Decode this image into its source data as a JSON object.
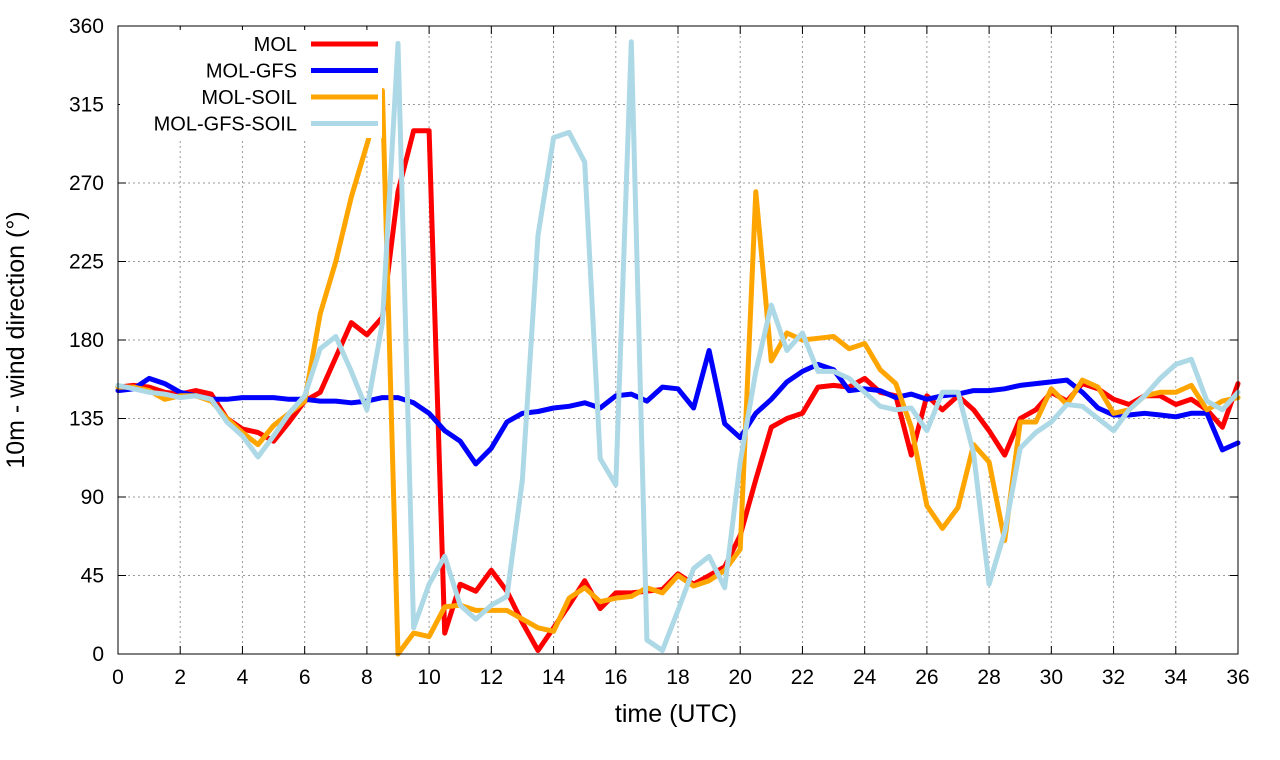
{
  "chart_data": {
    "type": "line",
    "title": "",
    "xlabel": "time (UTC)",
    "ylabel": "10m - wind direction (°)",
    "xlim": [
      0,
      36
    ],
    "ylim": [
      0,
      360
    ],
    "xticks": [
      0,
      2,
      4,
      6,
      8,
      10,
      12,
      14,
      16,
      18,
      20,
      22,
      24,
      26,
      28,
      30,
      32,
      34,
      36
    ],
    "yticks": [
      0,
      45,
      90,
      135,
      180,
      225,
      270,
      315,
      360
    ],
    "grid": true,
    "legend_position": "top-left",
    "series": [
      {
        "name": "MOL",
        "color": "#ff0000",
        "points": [
          [
            0,
            153
          ],
          [
            0.5,
            154
          ],
          [
            1,
            153
          ],
          [
            1.5,
            150
          ],
          [
            2,
            149
          ],
          [
            2.5,
            151
          ],
          [
            3,
            149
          ],
          [
            3.5,
            135
          ],
          [
            4,
            129
          ],
          [
            4.5,
            127
          ],
          [
            5,
            122
          ],
          [
            5.5,
            133
          ],
          [
            6,
            145
          ],
          [
            6.5,
            150
          ],
          [
            7,
            170
          ],
          [
            7.5,
            190
          ],
          [
            8,
            183
          ],
          [
            8.5,
            193
          ],
          [
            9,
            265
          ],
          [
            9.5,
            300
          ],
          [
            10,
            300
          ],
          [
            10.5,
            12
          ],
          [
            11,
            40
          ],
          [
            11.5,
            36
          ],
          [
            12,
            48
          ],
          [
            12.5,
            36
          ],
          [
            13,
            18
          ],
          [
            13.5,
            2
          ],
          [
            14,
            15
          ],
          [
            14.5,
            28
          ],
          [
            15,
            42
          ],
          [
            15.5,
            26
          ],
          [
            16,
            35
          ],
          [
            16.5,
            35
          ],
          [
            17,
            36
          ],
          [
            17.5,
            37
          ],
          [
            18,
            46
          ],
          [
            18.5,
            40
          ],
          [
            19,
            45
          ],
          [
            19.5,
            50
          ],
          [
            20,
            68
          ],
          [
            20.5,
            100
          ],
          [
            21,
            130
          ],
          [
            21.5,
            135
          ],
          [
            22,
            138
          ],
          [
            22.5,
            153
          ],
          [
            23,
            154
          ],
          [
            23.5,
            153
          ],
          [
            24,
            158
          ],
          [
            24.5,
            150
          ],
          [
            25,
            148
          ],
          [
            25.5,
            114
          ],
          [
            26,
            148
          ],
          [
            26.5,
            140
          ],
          [
            27,
            148
          ],
          [
            27.5,
            140
          ],
          [
            28,
            128
          ],
          [
            28.5,
            114
          ],
          [
            29,
            135
          ],
          [
            29.5,
            140
          ],
          [
            30,
            150
          ],
          [
            30.5,
            145
          ],
          [
            31,
            155
          ],
          [
            31.5,
            152
          ],
          [
            32,
            146
          ],
          [
            32.5,
            143
          ],
          [
            33,
            148
          ],
          [
            33.5,
            148
          ],
          [
            34,
            143
          ],
          [
            34.5,
            146
          ],
          [
            35,
            140
          ],
          [
            35.5,
            130
          ],
          [
            36,
            155
          ]
        ]
      },
      {
        "name": "MOL-GFS",
        "color": "#0000ff",
        "points": [
          [
            0,
            151
          ],
          [
            0.5,
            152
          ],
          [
            1,
            158
          ],
          [
            1.5,
            155
          ],
          [
            2,
            150
          ],
          [
            2.5,
            148
          ],
          [
            3,
            146
          ],
          [
            3.5,
            146
          ],
          [
            4,
            147
          ],
          [
            4.5,
            147
          ],
          [
            5,
            147
          ],
          [
            5.5,
            146
          ],
          [
            6,
            146
          ],
          [
            6.5,
            145
          ],
          [
            7,
            145
          ],
          [
            7.5,
            144
          ],
          [
            8,
            145
          ],
          [
            8.5,
            147
          ],
          [
            9,
            147
          ],
          [
            9.5,
            144
          ],
          [
            10,
            138
          ],
          [
            10.5,
            128
          ],
          [
            11,
            122
          ],
          [
            11.5,
            109
          ],
          [
            12,
            118
          ],
          [
            12.5,
            133
          ],
          [
            13,
            138
          ],
          [
            13.5,
            139
          ],
          [
            14,
            141
          ],
          [
            14.5,
            142
          ],
          [
            15,
            144
          ],
          [
            15.5,
            141
          ],
          [
            16,
            148
          ],
          [
            16.5,
            149
          ],
          [
            17,
            145
          ],
          [
            17.5,
            153
          ],
          [
            18,
            152
          ],
          [
            18.5,
            141
          ],
          [
            19,
            174
          ],
          [
            19.5,
            132
          ],
          [
            20,
            124
          ],
          [
            20.5,
            138
          ],
          [
            21,
            146
          ],
          [
            21.5,
            156
          ],
          [
            22,
            162
          ],
          [
            22.5,
            166
          ],
          [
            23,
            163
          ],
          [
            23.5,
            151
          ],
          [
            24,
            152
          ],
          [
            24.5,
            151
          ],
          [
            25,
            147
          ],
          [
            25.5,
            149
          ],
          [
            26,
            146
          ],
          [
            26.5,
            148
          ],
          [
            27,
            149
          ],
          [
            27.5,
            151
          ],
          [
            28,
            151
          ],
          [
            28.5,
            152
          ],
          [
            29,
            154
          ],
          [
            29.5,
            155
          ],
          [
            30,
            156
          ],
          [
            30.5,
            157
          ],
          [
            31,
            150
          ],
          [
            31.5,
            141
          ],
          [
            32,
            137
          ],
          [
            32.5,
            137
          ],
          [
            33,
            138
          ],
          [
            33.5,
            137
          ],
          [
            34,
            136
          ],
          [
            34.5,
            138
          ],
          [
            35,
            138
          ],
          [
            35.5,
            117
          ],
          [
            36,
            121
          ]
        ]
      },
      {
        "name": "MOL-SOIL",
        "color": "#ffa500",
        "points": [
          [
            0,
            153
          ],
          [
            0.5,
            153
          ],
          [
            1,
            151
          ],
          [
            1.5,
            146
          ],
          [
            2,
            148
          ],
          [
            2.5,
            148
          ],
          [
            3,
            145
          ],
          [
            3.5,
            135
          ],
          [
            4,
            127
          ],
          [
            4.5,
            120
          ],
          [
            5,
            131
          ],
          [
            5.5,
            138
          ],
          [
            6,
            145
          ],
          [
            6.5,
            195
          ],
          [
            7,
            225
          ],
          [
            7.5,
            262
          ],
          [
            8,
            292
          ],
          [
            8.5,
            323
          ],
          [
            9,
            0
          ],
          [
            9.5,
            12
          ],
          [
            10,
            10
          ],
          [
            10.5,
            27
          ],
          [
            11,
            28
          ],
          [
            11.5,
            25
          ],
          [
            12,
            25
          ],
          [
            12.5,
            25
          ],
          [
            13,
            20
          ],
          [
            13.5,
            15
          ],
          [
            14,
            13
          ],
          [
            14.5,
            32
          ],
          [
            15,
            38
          ],
          [
            15.5,
            30
          ],
          [
            16,
            32
          ],
          [
            16.5,
            33
          ],
          [
            17,
            38
          ],
          [
            17.5,
            35
          ],
          [
            18,
            45
          ],
          [
            18.5,
            39
          ],
          [
            19,
            42
          ],
          [
            19.5,
            48
          ],
          [
            20,
            60
          ],
          [
            20.5,
            265
          ],
          [
            21,
            168
          ],
          [
            21.5,
            184
          ],
          [
            22,
            180
          ],
          [
            22.5,
            181
          ],
          [
            23,
            182
          ],
          [
            23.5,
            175
          ],
          [
            24,
            178
          ],
          [
            24.5,
            163
          ],
          [
            25,
            155
          ],
          [
            25.5,
            130
          ],
          [
            26,
            85
          ],
          [
            26.5,
            72
          ],
          [
            27,
            84
          ],
          [
            27.5,
            120
          ],
          [
            28,
            110
          ],
          [
            28.5,
            65
          ],
          [
            29,
            133
          ],
          [
            29.5,
            133
          ],
          [
            30,
            152
          ],
          [
            30.5,
            143
          ],
          [
            31,
            157
          ],
          [
            31.5,
            153
          ],
          [
            32,
            138
          ],
          [
            32.5,
            140
          ],
          [
            33,
            148
          ],
          [
            33.5,
            150
          ],
          [
            34,
            150
          ],
          [
            34.5,
            154
          ],
          [
            35,
            140
          ],
          [
            35.5,
            145
          ],
          [
            36,
            147
          ]
        ]
      },
      {
        "name": "MOL-GFS-SOIL",
        "color": "#add8e6",
        "points": [
          [
            0,
            154
          ],
          [
            0.5,
            152
          ],
          [
            1,
            150
          ],
          [
            1.5,
            149
          ],
          [
            2,
            147
          ],
          [
            2.5,
            148
          ],
          [
            3,
            146
          ],
          [
            3.5,
            133
          ],
          [
            4,
            125
          ],
          [
            4.5,
            113
          ],
          [
            5,
            125
          ],
          [
            5.5,
            138
          ],
          [
            6,
            148
          ],
          [
            6.5,
            175
          ],
          [
            7,
            182
          ],
          [
            7.5,
            162
          ],
          [
            8,
            140
          ],
          [
            8.5,
            190
          ],
          [
            9,
            350
          ],
          [
            9.5,
            15
          ],
          [
            10,
            40
          ],
          [
            10.5,
            56
          ],
          [
            11,
            28
          ],
          [
            11.5,
            20
          ],
          [
            12,
            28
          ],
          [
            12.5,
            33
          ],
          [
            13,
            100
          ],
          [
            13.5,
            240
          ],
          [
            14,
            296
          ],
          [
            14.5,
            299
          ],
          [
            15,
            282
          ],
          [
            15.5,
            112
          ],
          [
            16,
            97
          ],
          [
            16.5,
            351
          ],
          [
            17,
            8
          ],
          [
            17.5,
            2
          ],
          [
            18,
            25
          ],
          [
            18.5,
            49
          ],
          [
            19,
            56
          ],
          [
            19.5,
            38
          ],
          [
            20,
            110
          ],
          [
            20.5,
            162
          ],
          [
            21,
            200
          ],
          [
            21.5,
            174
          ],
          [
            22,
            184
          ],
          [
            22.5,
            162
          ],
          [
            23,
            162
          ],
          [
            23.5,
            158
          ],
          [
            24,
            150
          ],
          [
            24.5,
            142
          ],
          [
            25,
            140
          ],
          [
            25.5,
            141
          ],
          [
            26,
            128
          ],
          [
            26.5,
            150
          ],
          [
            27,
            150
          ],
          [
            27.5,
            115
          ],
          [
            28,
            40
          ],
          [
            28.5,
            70
          ],
          [
            29,
            118
          ],
          [
            29.5,
            127
          ],
          [
            30,
            133
          ],
          [
            30.5,
            143
          ],
          [
            31,
            142
          ],
          [
            31.5,
            135
          ],
          [
            32,
            128
          ],
          [
            32.5,
            140
          ],
          [
            33,
            148
          ],
          [
            33.5,
            158
          ],
          [
            34,
            166
          ],
          [
            34.5,
            169
          ],
          [
            35,
            145
          ],
          [
            35.5,
            140
          ],
          [
            36,
            150
          ]
        ]
      }
    ]
  }
}
